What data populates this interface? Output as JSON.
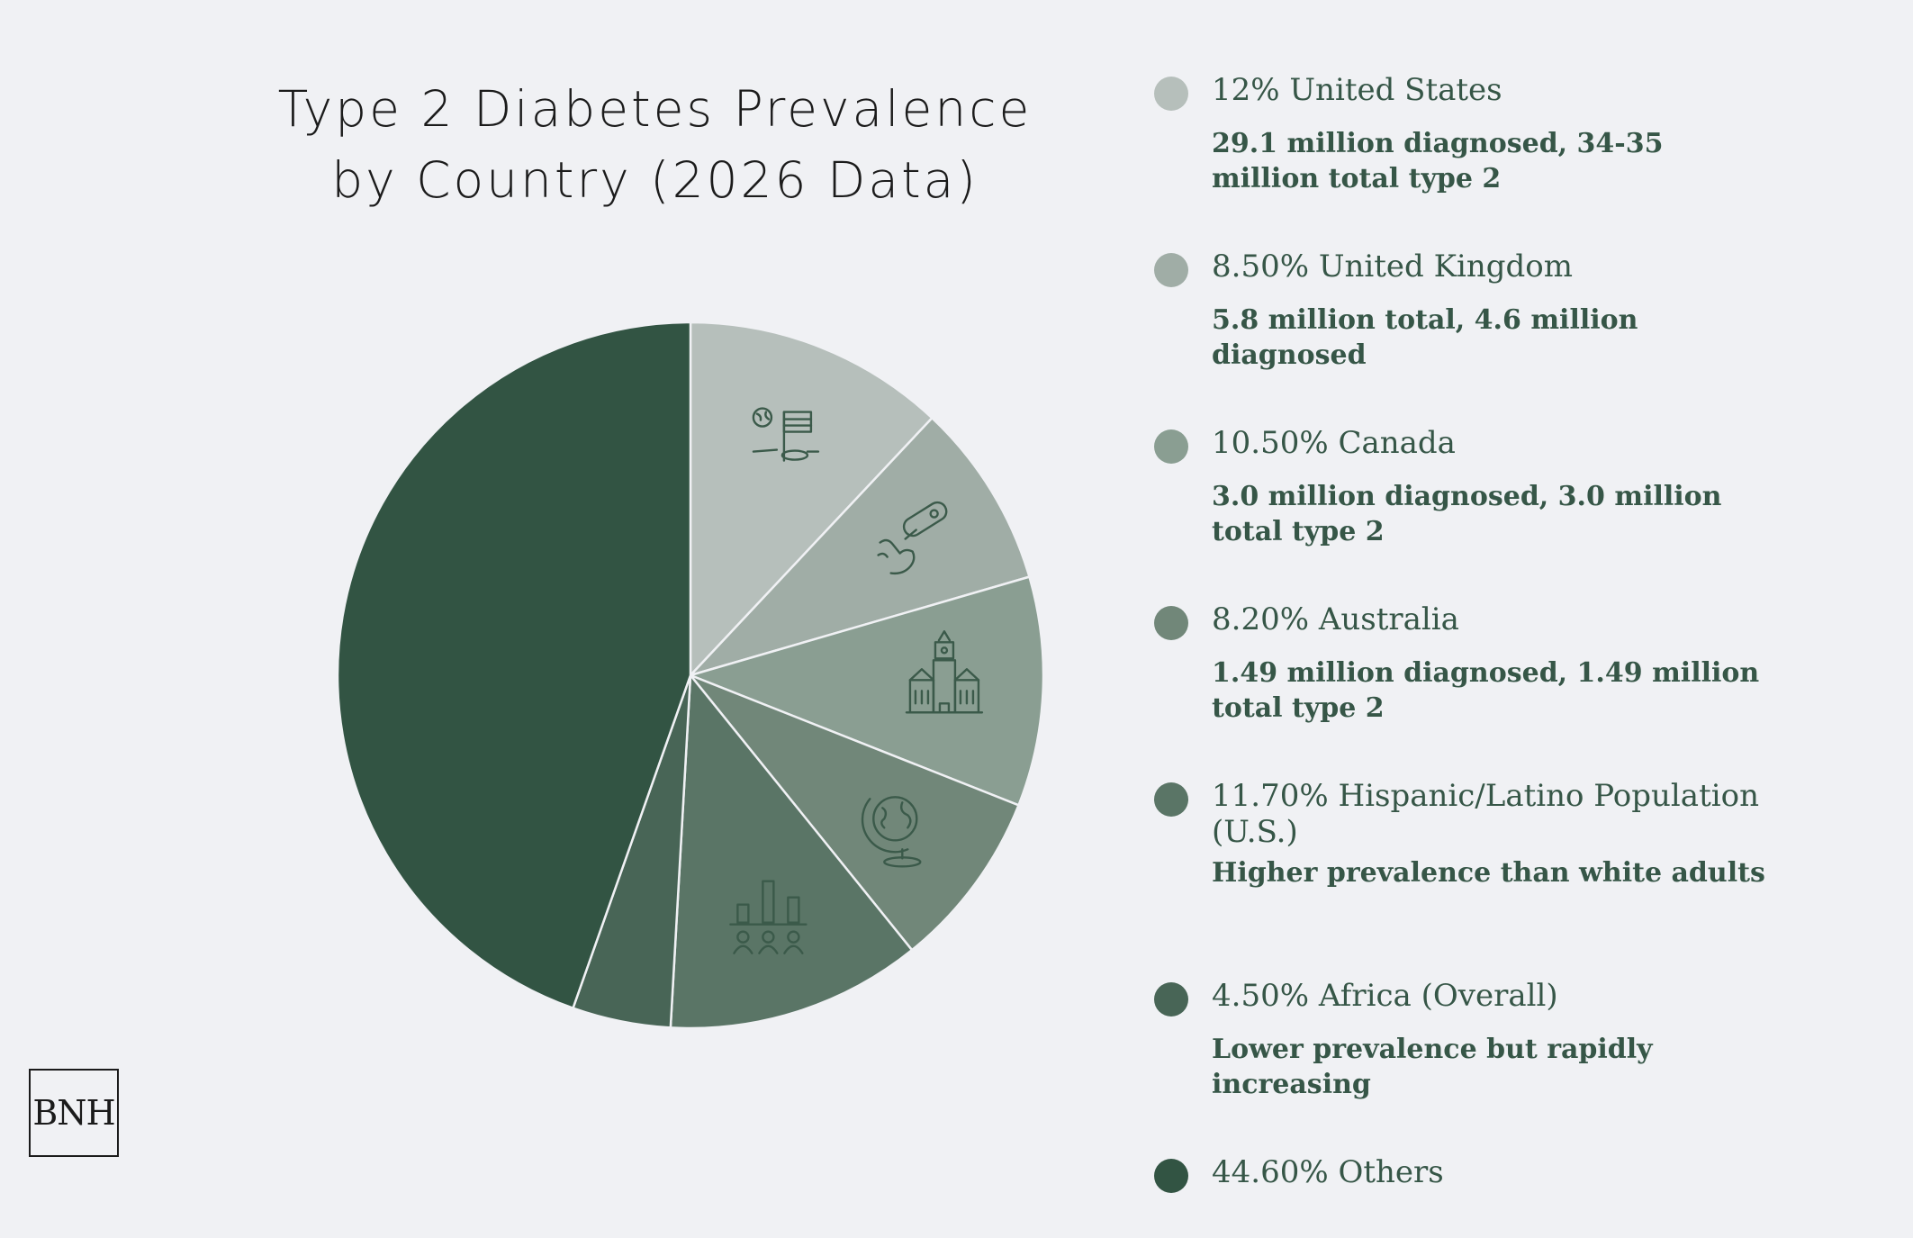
{
  "chart_data": {
    "type": "pie",
    "title_lines": [
      "Type 2 Diabetes Prevalence",
      "by Country (2026 Data)"
    ],
    "slices": [
      {
        "label": "United States",
        "percent_label": "12%",
        "value": 12.0,
        "color": "#b6bfbb",
        "icon": "globe-flag-icon",
        "description": "29.1 million diagnosed, 34-35 million total type 2"
      },
      {
        "label": "United Kingdom",
        "percent_label": "8.50%",
        "value": 8.5,
        "color": "#a0ada6",
        "icon": "glucose-meter-hand-icon",
        "description": "5.8 million total, 4.6 million diagnosed"
      },
      {
        "label": "Canada",
        "percent_label": "10.50%",
        "value": 10.5,
        "color": "#8a9e92",
        "icon": "parliament-building-icon",
        "description": "3.0 million diagnosed, 3.0 million total type 2"
      },
      {
        "label": "Australia",
        "percent_label": "8.20%",
        "value": 8.2,
        "color": "#718779",
        "icon": "desk-globe-icon",
        "description": "1.49 million diagnosed, 1.49 million total type 2"
      },
      {
        "label": "Hispanic/Latino Population (U.S.)",
        "percent_label": "11.70%",
        "value": 11.7,
        "color": "#5a7566",
        "icon": "population-bar-chart-icon",
        "description": "Higher prevalence than white adults"
      },
      {
        "label": "Africa (Overall)",
        "percent_label": "4.50%",
        "value": 4.5,
        "color": "#486556",
        "icon": "",
        "description": "Lower prevalence but rapidly increasing"
      },
      {
        "label": "Others",
        "percent_label": "44.60%",
        "value": 44.6,
        "color": "#325443",
        "icon": "",
        "description": ""
      }
    ]
  },
  "logo": {
    "text": "BNH"
  }
}
